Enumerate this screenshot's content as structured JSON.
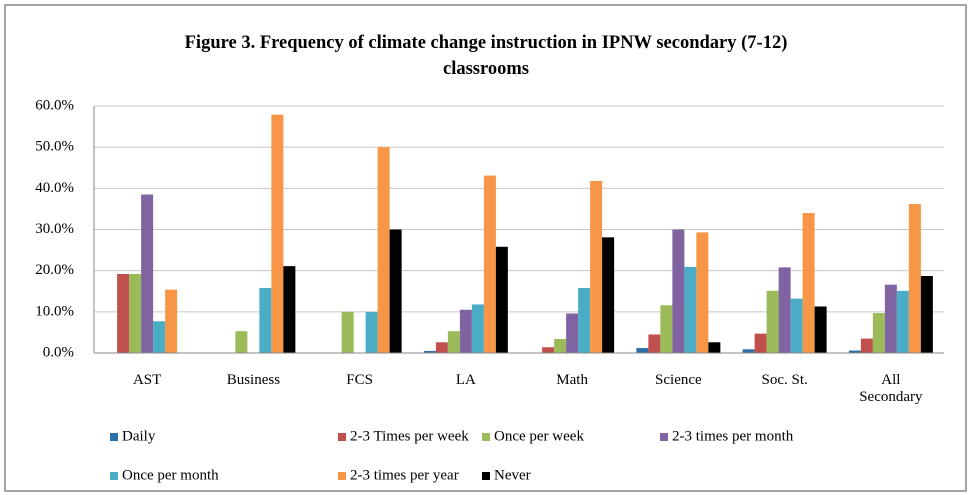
{
  "chart_data": {
    "type": "bar",
    "title": "Figure 3. Frequency of climate change instruction in IPNW secondary (7-12) classrooms",
    "categories": [
      "AST",
      "Business",
      "FCS",
      "LA",
      "Math",
      "Science",
      "Soc. St.",
      "All Secondary"
    ],
    "series": [
      {
        "name": "Daily",
        "color": "#2e6fa7",
        "values": [
          0,
          0,
          0,
          0.5,
          0,
          1.2,
          0.9,
          0.6
        ]
      },
      {
        "name": "2-3 Times per week",
        "color": "#c0504d",
        "values": [
          19.2,
          0,
          0,
          2.6,
          1.4,
          4.5,
          4.7,
          3.5
        ]
      },
      {
        "name": "Once per week",
        "color": "#9bbb59",
        "values": [
          19.2,
          5.3,
          10,
          5.3,
          3.4,
          11.6,
          15.1,
          9.7
        ]
      },
      {
        "name": "2-3 times per month",
        "color": "#8064a2",
        "values": [
          38.5,
          0,
          0,
          10.5,
          9.6,
          30,
          20.8,
          16.6
        ]
      },
      {
        "name": "Once per month",
        "color": "#4bacc6",
        "values": [
          7.7,
          15.8,
          10,
          11.8,
          15.8,
          20.9,
          13.2,
          15.1
        ]
      },
      {
        "name": "2-3 times per year",
        "color": "#f79646",
        "values": [
          15.4,
          57.9,
          50,
          43.1,
          41.8,
          29.3,
          34,
          36.2
        ]
      },
      {
        "name": "Never",
        "color": "#000000",
        "values": [
          0,
          21.1,
          30,
          25.8,
          28.1,
          2.6,
          11.3,
          18.7
        ]
      }
    ],
    "ylim": [
      0,
      60
    ],
    "yticks": [
      {
        "value": 0,
        "label": "0.0%"
      },
      {
        "value": 10,
        "label": "10.0%"
      },
      {
        "value": 20,
        "label": "20.0%"
      },
      {
        "value": 30,
        "label": "30.0%"
      },
      {
        "value": 40,
        "label": "40.0%"
      },
      {
        "value": 50,
        "label": "50.0%"
      },
      {
        "value": 60,
        "label": "60.0%"
      }
    ],
    "grid": true,
    "legend": "bottom"
  }
}
